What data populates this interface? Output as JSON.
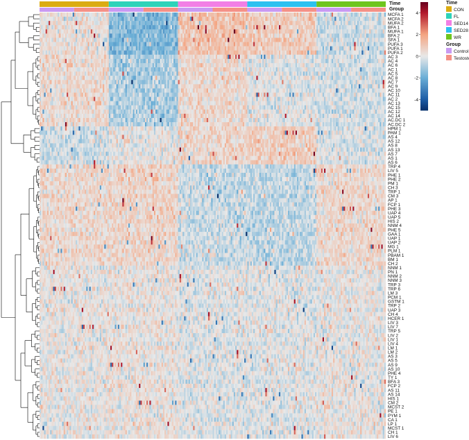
{
  "chart_data": {
    "type": "heatmap",
    "title": "",
    "xlabel": "",
    "ylabel": "",
    "rows": [
      "MCFA 1",
      "MCFA 2",
      "MUFA 2",
      "BFA 1",
      "MUFA 1",
      "BFA 2",
      "SFA 1",
      "PUFA 3",
      "PUFA 1",
      "PUFA 2",
      "AC 3",
      "AC 4",
      "AC 6",
      "AC 1",
      "AC 5",
      "AC 8",
      "AC 7",
      "AC 9",
      "AC 10",
      "AC 11",
      "AC 2",
      "AC 13",
      "AC 15",
      "AC 12",
      "AC 14",
      "AC.DC 1",
      "AC.DC 2",
      "HPM 1",
      "PAM 1",
      "AS 4",
      "AS 12",
      "AS 8",
      "AS 13",
      "AS 7",
      "AS 1",
      "AS 6",
      "TRP 4",
      "LIV 5",
      "PHE 1",
      "PHE 2",
      "PM 1",
      "CH 3",
      "TRP 1",
      "CM 3",
      "AP 1",
      "FCP 1",
      "PHE 3",
      "UAP 4",
      "UAP 5",
      "HIS 2",
      "NNM 4",
      "PHE 5",
      "GAA 1",
      "UAP 1",
      "UAP 2",
      "MG 1",
      "PLM 1",
      "PBAM 1",
      "BM 1",
      "CH 2",
      "NNM 1",
      "PN 1",
      "NNM 2",
      "NNM 3",
      "TRP 3",
      "TRP 6",
      "LM 3",
      "PCM 1",
      "GSTM 1",
      "TRP 2",
      "UAP 3",
      "CH 4",
      "HCER 1",
      "LIV 3",
      "LIV 7",
      "TRP 5",
      "LIV 2",
      "LIV 1",
      "LIV 4",
      "LM 1",
      "LM 2",
      "AS 3",
      "AS 5",
      "AS 9",
      "AS 10",
      "PHE 4",
      "TY 1",
      "BFA 3",
      "FCP 2",
      "AS 11",
      "AS 14",
      "HIS 1",
      "CM 2",
      "MCST 2",
      "PE 1",
      "PYM 1",
      "CA 1",
      "LP 1",
      "MCST 1",
      "CH 1",
      "LIV 6"
    ],
    "n_columns": 230,
    "annotations": {
      "time": {
        "label": "Time",
        "levels": [
          {
            "name": "CON",
            "color": "#DBAC12",
            "count": 46
          },
          {
            "name": "FL",
            "color": "#2ED3B9",
            "count": 46
          },
          {
            "name": "SED14",
            "color": "#F27FE5",
            "count": 46
          },
          {
            "name": "SED28",
            "color": "#2BC1F0",
            "count": 46
          },
          {
            "name": "WR",
            "color": "#6FC51E",
            "count": 46
          }
        ]
      },
      "group": {
        "label": "Group",
        "levels": [
          {
            "name": "Control",
            "color": "#C99AF2"
          },
          {
            "name": "Testosterone",
            "color": "#F49187"
          }
        ]
      }
    },
    "color_scale": {
      "min": -5,
      "max": 5,
      "ticks": [
        -4,
        -2,
        0,
        2,
        4
      ],
      "stops": [
        {
          "value": -5,
          "color": "#08306B"
        },
        {
          "value": -4,
          "color": "#1D5CA5"
        },
        {
          "value": -2,
          "color": "#6AAED6"
        },
        {
          "value": 0,
          "color": "#E8E8E8"
        },
        {
          "value": 2,
          "color": "#F4A582"
        },
        {
          "value": 4,
          "color": "#B2182B"
        },
        {
          "value": 5,
          "color": "#67001F"
        }
      ]
    },
    "legend_position": "top-right",
    "row_dendrogram": true,
    "column_dendrogram": false
  }
}
